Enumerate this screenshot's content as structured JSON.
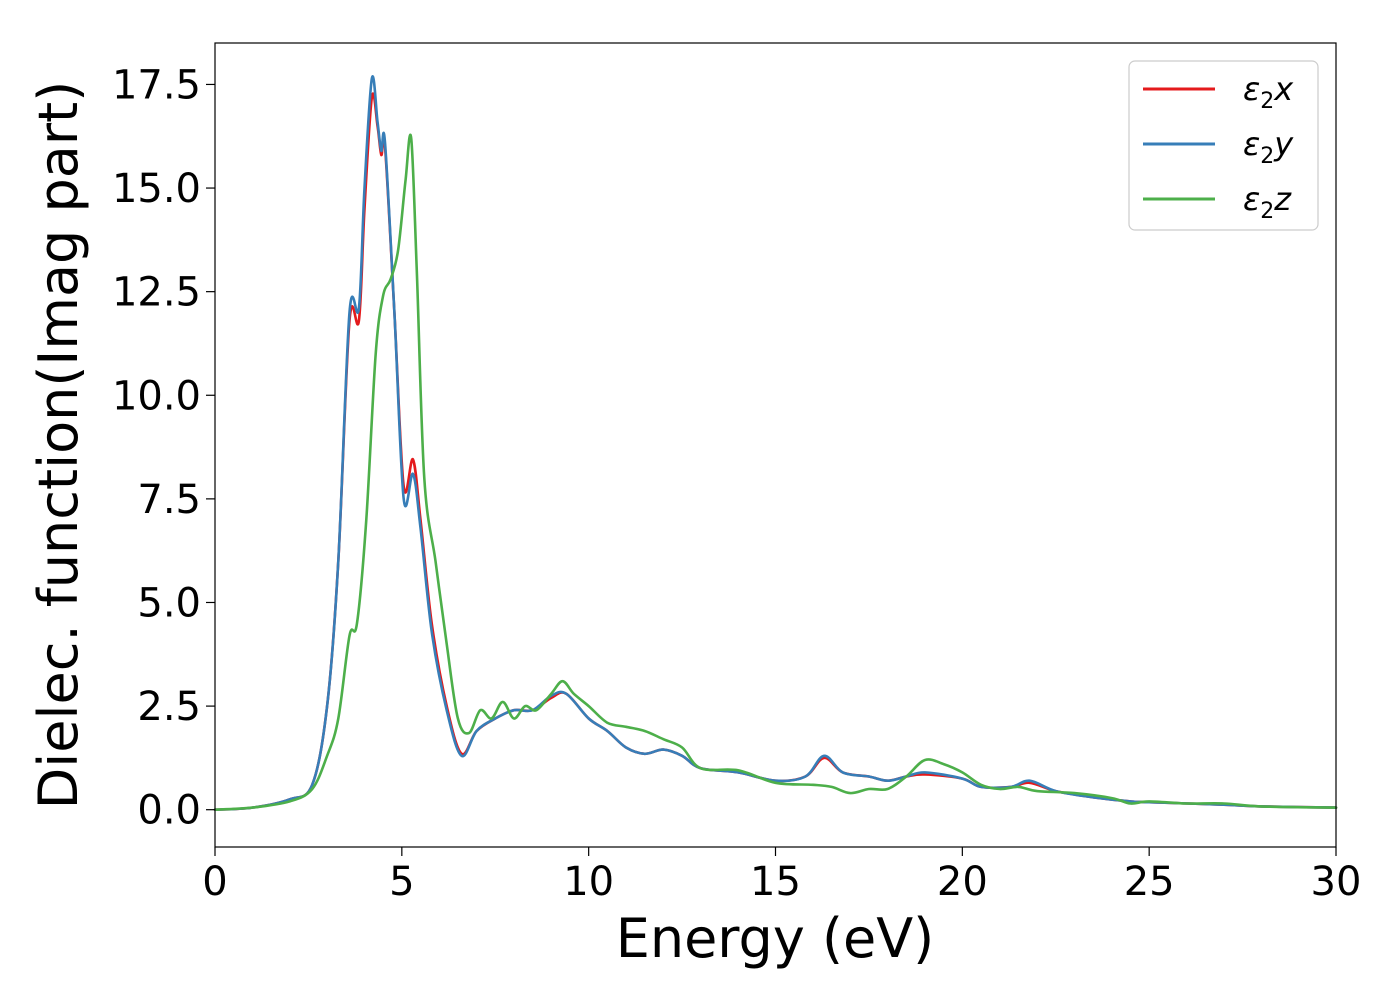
{
  "chart_data": {
    "type": "line",
    "title": "",
    "xlabel": "Energy (eV)",
    "ylabel": "Dielec. function(Imag part)",
    "xlim": [
      0,
      30
    ],
    "ylim": [
      -0.9,
      18.5
    ],
    "xticks": [
      0,
      5,
      10,
      15,
      20,
      25,
      30
    ],
    "xtick_labels": [
      "0",
      "5",
      "10",
      "15",
      "20",
      "25",
      "30"
    ],
    "yticks": [
      0.0,
      2.5,
      5.0,
      7.5,
      10.0,
      12.5,
      15.0,
      17.5
    ],
    "ytick_labels": [
      "0.0",
      "2.5",
      "5.0",
      "7.5",
      "10.0",
      "12.5",
      "15.0",
      "17.5"
    ],
    "grid": false,
    "legend_position": "top-right",
    "series": [
      {
        "name": "ε₂x",
        "name_main": "ε",
        "name_sub": "2",
        "name_suffix": "x",
        "color": "#e41a1c",
        "points": [
          [
            0,
            0
          ],
          [
            1,
            0.05
          ],
          [
            2,
            0.25
          ],
          [
            2.6,
            0.6
          ],
          [
            3,
            2.5
          ],
          [
            3.3,
            6
          ],
          [
            3.6,
            11.8
          ],
          [
            3.85,
            11.8
          ],
          [
            4.0,
            14.5
          ],
          [
            4.2,
            17.2
          ],
          [
            4.35,
            16.5
          ],
          [
            4.45,
            15.8
          ],
          [
            4.55,
            16.0
          ],
          [
            4.8,
            12
          ],
          [
            5.05,
            7.8
          ],
          [
            5.3,
            8.45
          ],
          [
            5.5,
            7
          ],
          [
            5.8,
            4.5
          ],
          [
            6.2,
            2.5
          ],
          [
            6.6,
            1.35
          ],
          [
            7.0,
            1.9
          ],
          [
            7.5,
            2.2
          ],
          [
            8.0,
            2.4
          ],
          [
            8.5,
            2.4
          ],
          [
            9.0,
            2.7
          ],
          [
            9.4,
            2.8
          ],
          [
            10.0,
            2.2
          ],
          [
            10.5,
            1.9
          ],
          [
            11.0,
            1.5
          ],
          [
            11.5,
            1.35
          ],
          [
            12.0,
            1.45
          ],
          [
            12.5,
            1.3
          ],
          [
            13.0,
            1.0
          ],
          [
            14.0,
            0.9
          ],
          [
            15.0,
            0.7
          ],
          [
            15.8,
            0.8
          ],
          [
            16.3,
            1.25
          ],
          [
            16.8,
            0.9
          ],
          [
            17.5,
            0.8
          ],
          [
            18.0,
            0.7
          ],
          [
            18.5,
            0.8
          ],
          [
            19.0,
            0.85
          ],
          [
            20.0,
            0.75
          ],
          [
            20.5,
            0.55
          ],
          [
            21.3,
            0.55
          ],
          [
            21.8,
            0.65
          ],
          [
            22.5,
            0.45
          ],
          [
            23.5,
            0.3
          ],
          [
            24.5,
            0.2
          ],
          [
            25.0,
            0.18
          ],
          [
            27.0,
            0.12
          ],
          [
            28.0,
            0.08
          ],
          [
            30,
            0.05
          ]
        ]
      },
      {
        "name": "ε₂y",
        "name_main": "ε",
        "name_sub": "2",
        "name_suffix": "y",
        "color": "#377eb8",
        "points": [
          [
            0,
            0
          ],
          [
            1,
            0.05
          ],
          [
            2,
            0.25
          ],
          [
            2.6,
            0.6
          ],
          [
            3,
            2.5
          ],
          [
            3.3,
            6
          ],
          [
            3.6,
            12
          ],
          [
            3.85,
            12.1
          ],
          [
            4.0,
            15
          ],
          [
            4.2,
            17.65
          ],
          [
            4.35,
            16.6
          ],
          [
            4.45,
            15.9
          ],
          [
            4.55,
            16.1
          ],
          [
            4.8,
            12
          ],
          [
            5.05,
            7.5
          ],
          [
            5.3,
            8.1
          ],
          [
            5.5,
            6.8
          ],
          [
            5.8,
            4.3
          ],
          [
            6.2,
            2.4
          ],
          [
            6.6,
            1.3
          ],
          [
            7.0,
            1.9
          ],
          [
            7.5,
            2.2
          ],
          [
            8.0,
            2.4
          ],
          [
            8.5,
            2.4
          ],
          [
            9.0,
            2.75
          ],
          [
            9.4,
            2.8
          ],
          [
            10.0,
            2.2
          ],
          [
            10.5,
            1.9
          ],
          [
            11.0,
            1.5
          ],
          [
            11.5,
            1.35
          ],
          [
            12.0,
            1.45
          ],
          [
            12.5,
            1.3
          ],
          [
            13.0,
            1.0
          ],
          [
            14.0,
            0.9
          ],
          [
            15.0,
            0.7
          ],
          [
            15.8,
            0.8
          ],
          [
            16.3,
            1.3
          ],
          [
            16.8,
            0.9
          ],
          [
            17.5,
            0.8
          ],
          [
            18.0,
            0.7
          ],
          [
            18.5,
            0.8
          ],
          [
            19.0,
            0.9
          ],
          [
            20.0,
            0.75
          ],
          [
            20.5,
            0.55
          ],
          [
            21.3,
            0.55
          ],
          [
            21.8,
            0.7
          ],
          [
            22.5,
            0.45
          ],
          [
            23.5,
            0.3
          ],
          [
            24.5,
            0.2
          ],
          [
            25.0,
            0.18
          ],
          [
            27.0,
            0.12
          ],
          [
            28.0,
            0.08
          ],
          [
            30,
            0.05
          ]
        ]
      },
      {
        "name": "ε₂z",
        "name_main": "ε",
        "name_sub": "2",
        "name_suffix": "z",
        "color": "#4daf4a",
        "points": [
          [
            0,
            0
          ],
          [
            1,
            0.05
          ],
          [
            2,
            0.2
          ],
          [
            2.6,
            0.5
          ],
          [
            3.0,
            1.3
          ],
          [
            3.3,
            2.2
          ],
          [
            3.6,
            4.2
          ],
          [
            3.8,
            4.5
          ],
          [
            4.05,
            7.0
          ],
          [
            4.3,
            11.0
          ],
          [
            4.5,
            12.4
          ],
          [
            4.7,
            12.8
          ],
          [
            4.9,
            13.5
          ],
          [
            5.1,
            15.2
          ],
          [
            5.25,
            16.2
          ],
          [
            5.4,
            13
          ],
          [
            5.6,
            8
          ],
          [
            5.9,
            6
          ],
          [
            6.2,
            4
          ],
          [
            6.5,
            2.2
          ],
          [
            6.8,
            1.85
          ],
          [
            7.1,
            2.4
          ],
          [
            7.4,
            2.2
          ],
          [
            7.7,
            2.6
          ],
          [
            8.0,
            2.2
          ],
          [
            8.3,
            2.5
          ],
          [
            8.6,
            2.4
          ],
          [
            9.0,
            2.8
          ],
          [
            9.3,
            3.1
          ],
          [
            9.6,
            2.8
          ],
          [
            10.0,
            2.5
          ],
          [
            10.5,
            2.1
          ],
          [
            11.0,
            2.0
          ],
          [
            11.5,
            1.9
          ],
          [
            12.0,
            1.7
          ],
          [
            12.5,
            1.5
          ],
          [
            13.0,
            1.0
          ],
          [
            14.0,
            0.95
          ],
          [
            15.0,
            0.65
          ],
          [
            16.0,
            0.6
          ],
          [
            16.5,
            0.55
          ],
          [
            17.0,
            0.4
          ],
          [
            17.5,
            0.5
          ],
          [
            18.0,
            0.5
          ],
          [
            18.5,
            0.8
          ],
          [
            19.0,
            1.2
          ],
          [
            19.5,
            1.1
          ],
          [
            20.0,
            0.9
          ],
          [
            20.5,
            0.6
          ],
          [
            21.0,
            0.5
          ],
          [
            21.5,
            0.55
          ],
          [
            22.0,
            0.45
          ],
          [
            23.0,
            0.4
          ],
          [
            24.0,
            0.28
          ],
          [
            24.5,
            0.15
          ],
          [
            25.0,
            0.2
          ],
          [
            26.0,
            0.15
          ],
          [
            27.0,
            0.15
          ],
          [
            28.0,
            0.08
          ],
          [
            30,
            0.05
          ]
        ]
      }
    ]
  }
}
